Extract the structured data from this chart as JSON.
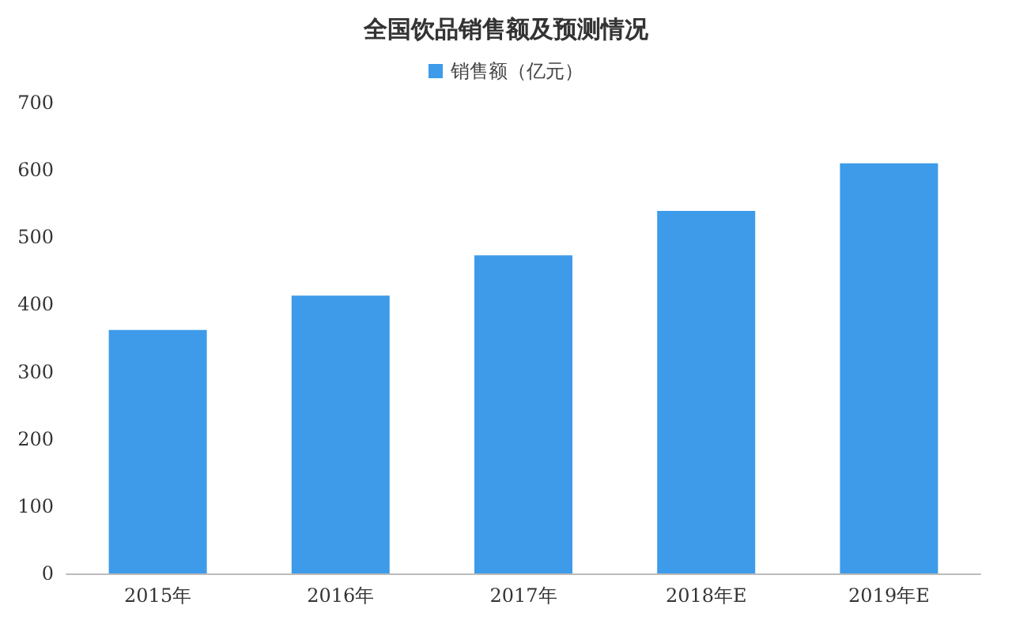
{
  "chart_data": {
    "type": "bar",
    "title": "全国饮品销售额及预测情况",
    "categories": [
      "2015年",
      "2016年",
      "2017年",
      "2018年E",
      "2019年E"
    ],
    "series": [
      {
        "name": "销售额（亿元）",
        "color": "#3d9be9",
        "values": [
          362,
          413,
          473,
          539,
          610
        ]
      }
    ],
    "ylim": [
      0,
      700
    ],
    "yticks": [
      0,
      100,
      200,
      300,
      400,
      500,
      600,
      700
    ],
    "grid": false,
    "legend": "top"
  }
}
